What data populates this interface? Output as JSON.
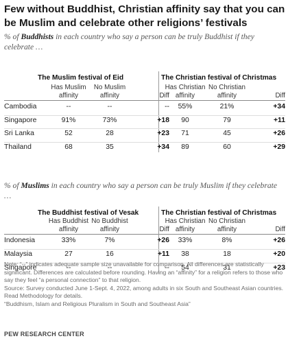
{
  "title": "Few without Buddhist, Christian affinity say that you can be Muslim and celebrate other religions’ festivals",
  "chart_data": [
    {
      "type": "table",
      "subtitle_pre": "% of ",
      "subtitle_em": "Buddhists",
      "subtitle_post": " in each country who say a person can be truly Buddhist if they celebrate …",
      "groups": [
        {
          "title": "The Muslim festival of Eid",
          "columns": [
            "Has Muslim affinity",
            "No Muslim affinity"
          ],
          "diff_label": "Diff"
        },
        {
          "title": "The Christian festival of Christmas",
          "columns": [
            "Has Christian affinity",
            "No Christian affinity"
          ],
          "diff_label": "Diff"
        }
      ],
      "rows": [
        {
          "country": "Cambodia",
          "values": [
            "--",
            "--",
            "--",
            "55%",
            "21%",
            "+34"
          ]
        },
        {
          "country": "Singapore",
          "values": [
            "91%",
            "73%",
            "+18",
            "90",
            "79",
            "+11"
          ]
        },
        {
          "country": "Sri Lanka",
          "values": [
            "52",
            "28",
            "+23",
            "71",
            "45",
            "+26"
          ]
        },
        {
          "country": "Thailand",
          "values": [
            "68",
            "35",
            "+34",
            "89",
            "60",
            "+29"
          ]
        }
      ]
    },
    {
      "type": "table",
      "subtitle_pre": "% of ",
      "subtitle_em": "Muslims",
      "subtitle_post": " in each country who say a person can be truly Muslim if they celebrate …",
      "groups": [
        {
          "title": "The Buddhist festival of Vesak",
          "columns": [
            "Has Buddhist affinity",
            "No Buddhist affinity"
          ],
          "diff_label": "Diff"
        },
        {
          "title": "The Christian festival of Christmas",
          "columns": [
            "Has Christian affinity",
            "No Christian affinity"
          ],
          "diff_label": "Diff"
        }
      ],
      "rows": [
        {
          "country": "Indonesia",
          "values": [
            "33%",
            "7%",
            "+26",
            "33%",
            "8%",
            "+26"
          ]
        },
        {
          "country": "Malaysia",
          "values": [
            "27",
            "16",
            "+11",
            "38",
            "18",
            "+20"
          ]
        },
        {
          "country": "Singapore",
          "values": [
            "--",
            "--",
            "--",
            "54",
            "31",
            "+23"
          ]
        }
      ]
    }
  ],
  "notes": {
    "note": "Note: “--” indicates adequate sample size unavailable for comparison. All differences are statistically significant. Differences are calculated before rounding. Having an “affinity” for a religion refers to those who say they feel “a personal connection” to that religion.",
    "source": "Source: Survey conducted June 1-Sept. 4, 2022, among adults in six South and Southeast Asian countries. Read Methodology for details.",
    "report": "“Buddhism, Islam and Religious Pluralism in South and Southeast Asia”"
  },
  "credit": "PEW RESEARCH CENTER"
}
